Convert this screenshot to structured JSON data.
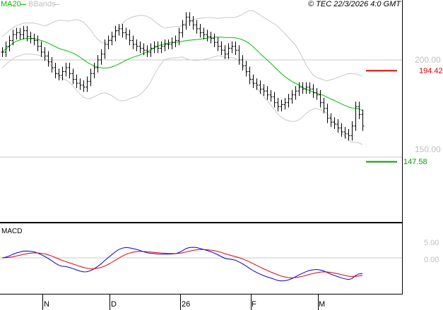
{
  "header": {
    "copyright": "© TEC 22/3/2026 4:0 GMT"
  },
  "chart_data": {
    "type": "ohlc",
    "legend": [
      {
        "name": "MA20",
        "color": "#00c000"
      },
      {
        "name": "BBands",
        "color": "#c0c0c0"
      }
    ],
    "price_axis": {
      "ticks": [
        "200.00",
        "150.00"
      ],
      "ylim": [
        111,
        227
      ]
    },
    "x_ticks": [
      "N",
      "D",
      "26",
      "F",
      "M"
    ],
    "closes": [
      204,
      207,
      210,
      213,
      214,
      213,
      215,
      212,
      211,
      210,
      207,
      204,
      202,
      199,
      196,
      193,
      192,
      194,
      196,
      193,
      190,
      188,
      187,
      186,
      189,
      193,
      196,
      200,
      203,
      208,
      210,
      212,
      215,
      216,
      214,
      213,
      210,
      208,
      207,
      206,
      205,
      204,
      206,
      207,
      206,
      207,
      208,
      208,
      209,
      210,
      214,
      218,
      222,
      220,
      218,
      216,
      214,
      213,
      212,
      211,
      209,
      207,
      205,
      203,
      206,
      207,
      205,
      200,
      197,
      194,
      190,
      188,
      187,
      185,
      184,
      182,
      181,
      178,
      176,
      177,
      178,
      180,
      182,
      184,
      186,
      185,
      186,
      185,
      183,
      182,
      178,
      175,
      170,
      168,
      167,
      165,
      163,
      162,
      161,
      166,
      176,
      172,
      166
    ],
    "levels": [
      {
        "label": "194.42",
        "value": 194.42,
        "color": "#e00000"
      },
      {
        "label": "147.58",
        "value": 147.58,
        "color": "#00a000"
      }
    ],
    "macd": {
      "label": "MACD",
      "ticks": [
        "5.00",
        "0.00"
      ],
      "line_color": "#0000e0",
      "signal_color": "#e00000"
    }
  }
}
